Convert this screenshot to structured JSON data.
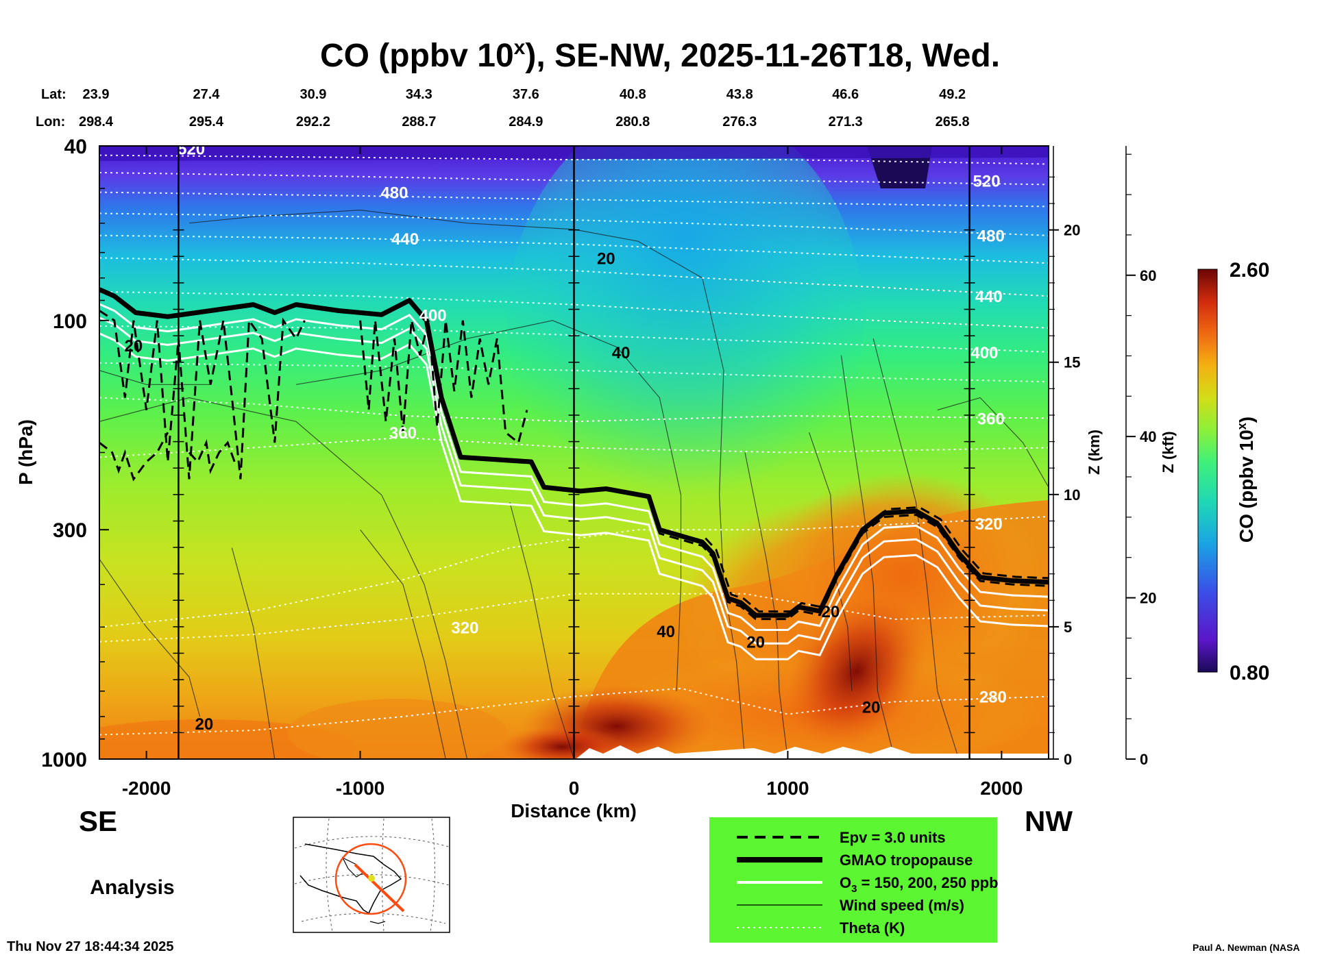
{
  "chart_data": {
    "type": "heatmap",
    "title": "CO (ppbv 10^x), SE-NW, 2025-11-26T18, Wed.",
    "title_parts": {
      "main": "CO (ppbv 10",
      "sup": "x",
      "rest": "), SE-NW, 2025-11-26T18, Wed."
    },
    "xlabel": "Distance (km)",
    "ylabel": "P (hPa)",
    "xlim": [
      -2220,
      2220
    ],
    "ylim": [
      1000,
      40
    ],
    "x_ticks": [
      -2000,
      -1000,
      0,
      1000,
      2000
    ],
    "x_tick_labels": [
      "-2000",
      "-1000",
      "0",
      "1000",
      "2000"
    ],
    "y_ticks": [
      40,
      100,
      300,
      1000
    ],
    "y_tick_labels": [
      "40",
      "100",
      "300",
      "1000"
    ],
    "z_km_label": "Z (km)",
    "z_km_ticks": [
      {
        "km": 0,
        "label": "0"
      },
      {
        "km": 5,
        "label": "5"
      },
      {
        "km": 10,
        "label": "10"
      },
      {
        "km": 15,
        "label": "15"
      },
      {
        "km": 20,
        "label": "20"
      }
    ],
    "z_kft_label": "Z (kft)",
    "z_kft_ticks": [
      {
        "kft": 0,
        "label": "0"
      },
      {
        "kft": 20,
        "label": "20"
      },
      {
        "kft": 40,
        "label": "40"
      },
      {
        "kft": 60,
        "label": "60"
      }
    ],
    "lat_label": "Lat:",
    "lon_label": "Lon:",
    "positions": [
      {
        "dist": -2220,
        "lat": "23.9",
        "lon": "298.4"
      },
      {
        "dist": -1720,
        "lat": "27.4",
        "lon": "295.4"
      },
      {
        "dist": -1220,
        "lat": "30.9",
        "lon": "292.2"
      },
      {
        "dist": -725,
        "lat": "34.3",
        "lon": "288.7"
      },
      {
        "dist": -225,
        "lat": "37.6",
        "lon": "284.9"
      },
      {
        "dist": 275,
        "lat": "40.8",
        "lon": "280.8"
      },
      {
        "dist": 775,
        "lat": "43.8",
        "lon": "276.3"
      },
      {
        "dist": 1270,
        "lat": "46.6",
        "lon": "271.3"
      },
      {
        "dist": 1770,
        "lat": "49.2",
        "lon": "265.8"
      }
    ],
    "vertical_markers_km": [
      -1850,
      0,
      1850
    ],
    "colorbar": {
      "label": "CO (ppbv 10^x)",
      "min": 0.8,
      "max": 2.6,
      "min_label": "0.80",
      "max_label": "2.60"
    },
    "tropopause": [
      {
        "d": -2220,
        "p": 85
      },
      {
        "d": -2150,
        "p": 88
      },
      {
        "d": -2050,
        "p": 96
      },
      {
        "d": -1900,
        "p": 98
      },
      {
        "d": -1700,
        "p": 95
      },
      {
        "d": -1500,
        "p": 92
      },
      {
        "d": -1400,
        "p": 96
      },
      {
        "d": -1300,
        "p": 92
      },
      {
        "d": -1100,
        "p": 95
      },
      {
        "d": -900,
        "p": 97
      },
      {
        "d": -770,
        "p": 90
      },
      {
        "d": -690,
        "p": 100
      },
      {
        "d": -620,
        "p": 150
      },
      {
        "d": -530,
        "p": 205
      },
      {
        "d": -200,
        "p": 210
      },
      {
        "d": -140,
        "p": 240
      },
      {
        "d": 30,
        "p": 245
      },
      {
        "d": 150,
        "p": 242
      },
      {
        "d": 350,
        "p": 252
      },
      {
        "d": 400,
        "p": 300
      },
      {
        "d": 600,
        "p": 320
      },
      {
        "d": 650,
        "p": 340
      },
      {
        "d": 720,
        "p": 430
      },
      {
        "d": 780,
        "p": 440
      },
      {
        "d": 850,
        "p": 470
      },
      {
        "d": 1000,
        "p": 470
      },
      {
        "d": 1050,
        "p": 450
      },
      {
        "d": 1150,
        "p": 460
      },
      {
        "d": 1230,
        "p": 380
      },
      {
        "d": 1350,
        "p": 300
      },
      {
        "d": 1450,
        "p": 275
      },
      {
        "d": 1600,
        "p": 272
      },
      {
        "d": 1700,
        "p": 290
      },
      {
        "d": 1800,
        "p": 340
      },
      {
        "d": 1900,
        "p": 385
      },
      {
        "d": 2050,
        "p": 392
      },
      {
        "d": 2220,
        "p": 395
      }
    ],
    "theta_labels": [
      {
        "label": "520",
        "d": -1790,
        "p": 40.5
      },
      {
        "label": "480",
        "d": -840,
        "p": 51
      },
      {
        "label": "440",
        "d": -790,
        "p": 65
      },
      {
        "label": "400",
        "d": -660,
        "p": 97
      },
      {
        "label": "360",
        "d": -800,
        "p": 180
      },
      {
        "label": "320",
        "d": -510,
        "p": 500
      },
      {
        "label": "520",
        "d": 1930,
        "p": 48
      },
      {
        "label": "480",
        "d": 1950,
        "p": 64
      },
      {
        "label": "440",
        "d": 1940,
        "p": 88
      },
      {
        "label": "400",
        "d": 1920,
        "p": 118
      },
      {
        "label": "360",
        "d": 1950,
        "p": 167
      },
      {
        "label": "320",
        "d": 1940,
        "p": 290
      },
      {
        "label": "280",
        "d": 1960,
        "p": 720
      }
    ],
    "wind_labels": [
      {
        "label": "20",
        "d": 150,
        "p": 72
      },
      {
        "label": "40",
        "d": 220,
        "p": 118
      },
      {
        "label": "20",
        "d": -2060,
        "p": 114
      },
      {
        "label": "40",
        "d": 430,
        "p": 510
      },
      {
        "label": "20",
        "d": 850,
        "p": 540
      },
      {
        "label": "20",
        "d": 1200,
        "p": 460
      },
      {
        "label": "20",
        "d": 1390,
        "p": 760
      },
      {
        "label": "20",
        "d": -1730,
        "p": 830
      }
    ],
    "legend": [
      {
        "style": "dashed",
        "label": "Epv = 3.0 units"
      },
      {
        "style": "thick",
        "label": "GMAO tropopause"
      },
      {
        "style": "white",
        "label": "O3 = 150, 200, 250 ppb"
      },
      {
        "style": "thin",
        "label": "Wind speed (m/s)"
      },
      {
        "style": "dotted",
        "label": "Theta (K)"
      }
    ]
  },
  "labels": {
    "se": "SE",
    "nw": "NW",
    "analysis": "Analysis",
    "timestamp": "Thu Nov 27 18:44:34 2025",
    "credit": "Paul A. Newman (NASA"
  }
}
